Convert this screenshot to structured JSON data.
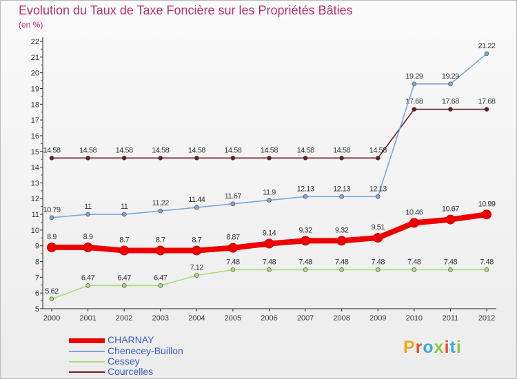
{
  "title": "Evolution du Taux de Taxe Foncière sur les Propriétés Bâties",
  "unit_label": "(en %)",
  "logo_text": "Proxiti",
  "logo_colors": [
    "#f2a21b",
    "#e84c2b",
    "#39a6dd",
    "#8cc63f",
    "#e84c2b",
    "#39a6dd",
    "#8cc63f"
  ],
  "chart_data": {
    "type": "line",
    "title": "Evolution du Taux de Taxe Foncière sur les Propriétés Bâties",
    "ylabel": "(en %)",
    "xlabel": "",
    "x": [
      "2000",
      "2001",
      "2002",
      "2003",
      "2004",
      "2005",
      "2006",
      "2007",
      "2008",
      "2009",
      "2010",
      "2011",
      "2012"
    ],
    "ylim": [
      5,
      22
    ],
    "yticks": [
      "5",
      "6",
      "7",
      "8",
      "9",
      "10",
      "11",
      "12",
      "13",
      "14",
      "15",
      "16",
      "17",
      "18",
      "19",
      "20",
      "21",
      "22"
    ],
    "grid": false,
    "legend_position": "bottom-left",
    "series": [
      {
        "name": "Courcelles",
        "color": "#6b1e24",
        "values": [
          14.58,
          14.58,
          14.58,
          14.58,
          14.58,
          14.58,
          14.58,
          14.58,
          14.58,
          14.58,
          17.68,
          17.68,
          17.68
        ],
        "labels": [
          "14.58",
          "14.58",
          "14.58",
          "14.58",
          "14.58",
          "14.58",
          "14.58",
          "14.58",
          "14.58",
          "14.58",
          "17.68",
          "17.68",
          "17.68"
        ]
      },
      {
        "name": "Chenecey-Buillon",
        "color": "#7ba7d7",
        "values": [
          10.79,
          11,
          11,
          11.22,
          11.44,
          11.67,
          11.9,
          12.13,
          12.13,
          12.13,
          19.29,
          19.29,
          21.22
        ],
        "labels": [
          "10.79",
          "11",
          "11",
          "11.22",
          "11.44",
          "11.67",
          "11.9",
          "12.13",
          "12.13",
          "12.13",
          "19.29",
          "19.29",
          "21.22"
        ]
      },
      {
        "name": "Cessey",
        "color": "#a9dc73",
        "values": [
          5.62,
          6.47,
          6.47,
          6.47,
          7.12,
          7.48,
          7.48,
          7.48,
          7.48,
          7.48,
          7.48,
          7.48,
          7.48
        ],
        "labels": [
          "5.62",
          "6.47",
          "6.47",
          "6.47",
          "7.12",
          "7.48",
          "7.48",
          "7.48",
          "7.48",
          "7.48",
          "7.48",
          "7.48",
          "7.48"
        ]
      },
      {
        "name": "CHARNAY",
        "color": "#ee0000",
        "values": [
          8.9,
          8.9,
          8.7,
          8.7,
          8.7,
          8.87,
          9.14,
          9.32,
          9.32,
          9.51,
          10.46,
          10.67,
          10.99
        ],
        "labels": [
          "8.9",
          "8.9",
          "8.7",
          "8.7",
          "8.7",
          "8.87",
          "9.14",
          "9.32",
          "9.32",
          "9.51",
          "10.46",
          "10.67",
          "10.99"
        ]
      }
    ]
  },
  "legend": [
    {
      "name": "CHARNAY",
      "color": "#ee0000",
      "thickness": 7
    },
    {
      "name": "Chenecey-Buillon",
      "color": "#7ba7d7",
      "thickness": 2
    },
    {
      "name": "Cessey",
      "color": "#a9dc73",
      "thickness": 2
    },
    {
      "name": "Courcelles",
      "color": "#6b1e24",
      "thickness": 2
    }
  ]
}
